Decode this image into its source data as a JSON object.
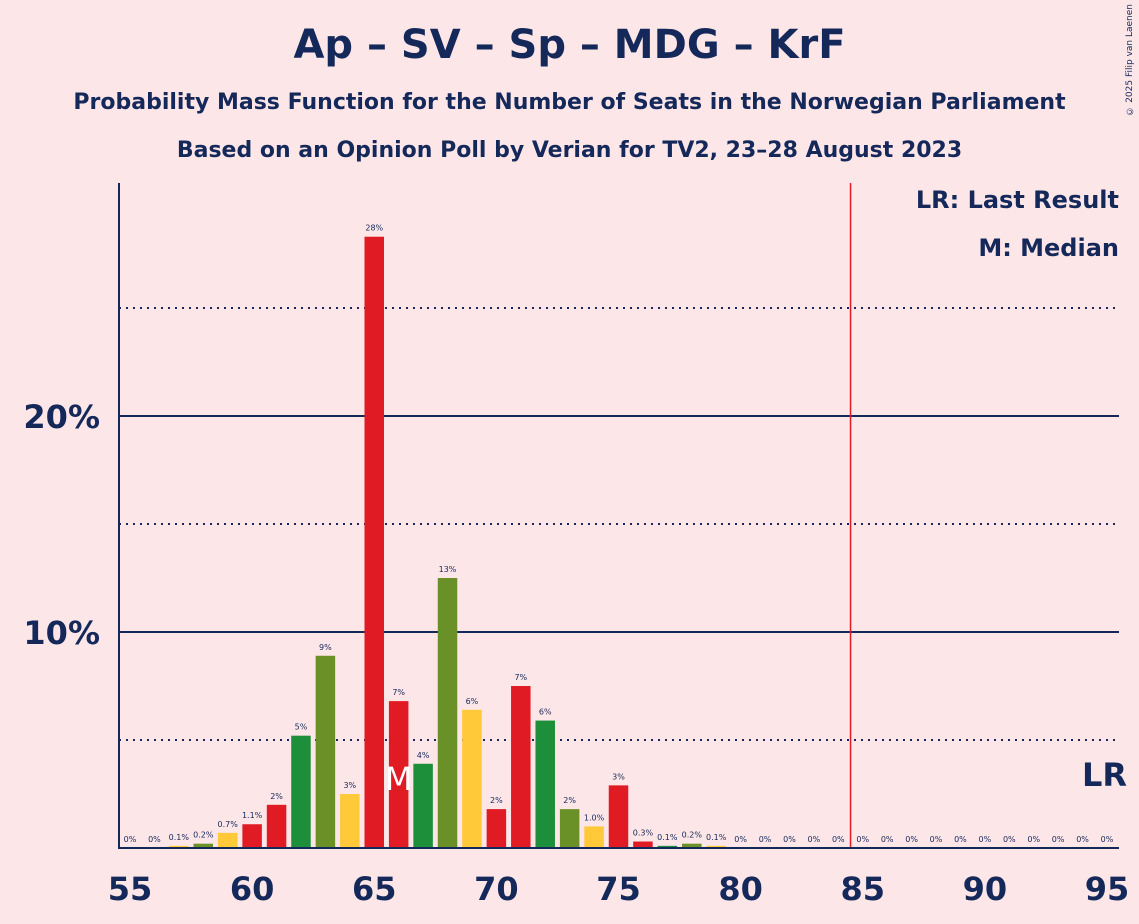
{
  "chart_data": {
    "type": "bar",
    "title": "Ap – SV – Sp – MDG – KrF",
    "subtitle": "Probability Mass Function for the Number of Seats in the Norwegian Parliament",
    "subtitle2": "Based on an Opinion Poll by Verian for TV2, 23–28 August 2023",
    "copyright": "© 2025 Filip van Laenen",
    "legend": {
      "lr": "LR: Last Result",
      "m": "M: Median"
    },
    "xlim": [
      55,
      95
    ],
    "ylim": [
      0,
      31
    ],
    "x_ticks": [
      55,
      60,
      65,
      70,
      75,
      80,
      85,
      90,
      95
    ],
    "y_ticks": [
      {
        "value": 10,
        "label": "10%",
        "solid": true
      },
      {
        "value": 20,
        "label": "20%",
        "solid": true
      }
    ],
    "y_dotted": [
      5,
      15,
      25
    ],
    "last_result": 85,
    "last_result_label": "LR",
    "median": 66,
    "median_label": "M",
    "bars": [
      {
        "x": 55,
        "value": 0,
        "label": "0%",
        "color": "#1d8f3a"
      },
      {
        "x": 56,
        "value": 0,
        "label": "0%",
        "color": "#6a9128"
      },
      {
        "x": 57,
        "value": 0.1,
        "label": "0.1%",
        "color": "#ffc93a"
      },
      {
        "x": 58,
        "value": 0.2,
        "label": "0.2%",
        "color": "#6a9128"
      },
      {
        "x": 59,
        "value": 0.7,
        "label": "0.7%",
        "color": "#ffc93a"
      },
      {
        "x": 60,
        "value": 1.1,
        "label": "1.1%",
        "color": "#e01b24"
      },
      {
        "x": 61,
        "value": 2.0,
        "label": "2%",
        "color": "#e01b24"
      },
      {
        "x": 62,
        "value": 5.2,
        "label": "5%",
        "color": "#1d8f3a"
      },
      {
        "x": 63,
        "value": 8.9,
        "label": "9%",
        "color": "#6a9128"
      },
      {
        "x": 64,
        "value": 2.5,
        "label": "3%",
        "color": "#ffc93a"
      },
      {
        "x": 65,
        "value": 28.3,
        "label": "28%",
        "color": "#e01b24"
      },
      {
        "x": 66,
        "value": 6.8,
        "label": "7%",
        "color": "#e01b24"
      },
      {
        "x": 67,
        "value": 3.9,
        "label": "4%",
        "color": "#1d8f3a"
      },
      {
        "x": 68,
        "value": 12.5,
        "label": "13%",
        "color": "#6a9128"
      },
      {
        "x": 69,
        "value": 6.4,
        "label": "6%",
        "color": "#ffc93a"
      },
      {
        "x": 70,
        "value": 1.8,
        "label": "2%",
        "color": "#e01b24"
      },
      {
        "x": 71,
        "value": 7.5,
        "label": "7%",
        "color": "#e01b24"
      },
      {
        "x": 72,
        "value": 5.9,
        "label": "6%",
        "color": "#1d8f3a"
      },
      {
        "x": 73,
        "value": 1.8,
        "label": "2%",
        "color": "#6a9128"
      },
      {
        "x": 74,
        "value": 1.0,
        "label": "1.0%",
        "color": "#ffc93a"
      },
      {
        "x": 75,
        "value": 2.9,
        "label": "3%",
        "color": "#e01b24"
      },
      {
        "x": 76,
        "value": 0.3,
        "label": "0.3%",
        "color": "#e01b24"
      },
      {
        "x": 77,
        "value": 0.1,
        "label": "0.1%",
        "color": "#1d8f3a"
      },
      {
        "x": 78,
        "value": 0.2,
        "label": "0.2%",
        "color": "#6a9128"
      },
      {
        "x": 79,
        "value": 0.1,
        "label": "0.1%",
        "color": "#ffc93a"
      },
      {
        "x": 80,
        "value": 0,
        "label": "0%",
        "color": "#e01b24"
      },
      {
        "x": 81,
        "value": 0,
        "label": "0%",
        "color": "#e01b24"
      },
      {
        "x": 82,
        "value": 0,
        "label": "0%",
        "color": "#1d8f3a"
      },
      {
        "x": 83,
        "value": 0,
        "label": "0%",
        "color": "#6a9128"
      },
      {
        "x": 84,
        "value": 0,
        "label": "0%",
        "color": "#ffc93a"
      },
      {
        "x": 85,
        "value": 0,
        "label": "0%",
        "color": "#e01b24"
      },
      {
        "x": 86,
        "value": 0,
        "label": "0%",
        "color": "#e01b24"
      },
      {
        "x": 87,
        "value": 0,
        "label": "0%",
        "color": "#1d8f3a"
      },
      {
        "x": 88,
        "value": 0,
        "label": "0%",
        "color": "#6a9128"
      },
      {
        "x": 89,
        "value": 0,
        "label": "0%",
        "color": "#ffc93a"
      },
      {
        "x": 90,
        "value": 0,
        "label": "0%",
        "color": "#e01b24"
      },
      {
        "x": 91,
        "value": 0,
        "label": "0%",
        "color": "#e01b24"
      },
      {
        "x": 92,
        "value": 0,
        "label": "0%",
        "color": "#1d8f3a"
      },
      {
        "x": 93,
        "value": 0,
        "label": "0%",
        "color": "#6a9128"
      },
      {
        "x": 94,
        "value": 0,
        "label": "0%",
        "color": "#ffc93a"
      },
      {
        "x": 95,
        "value": 0,
        "label": "0%",
        "color": "#e01b24"
      }
    ],
    "colors": {
      "axis": "#14285a",
      "last_result_line": "#e01b24",
      "background": "#fde6e8"
    }
  }
}
